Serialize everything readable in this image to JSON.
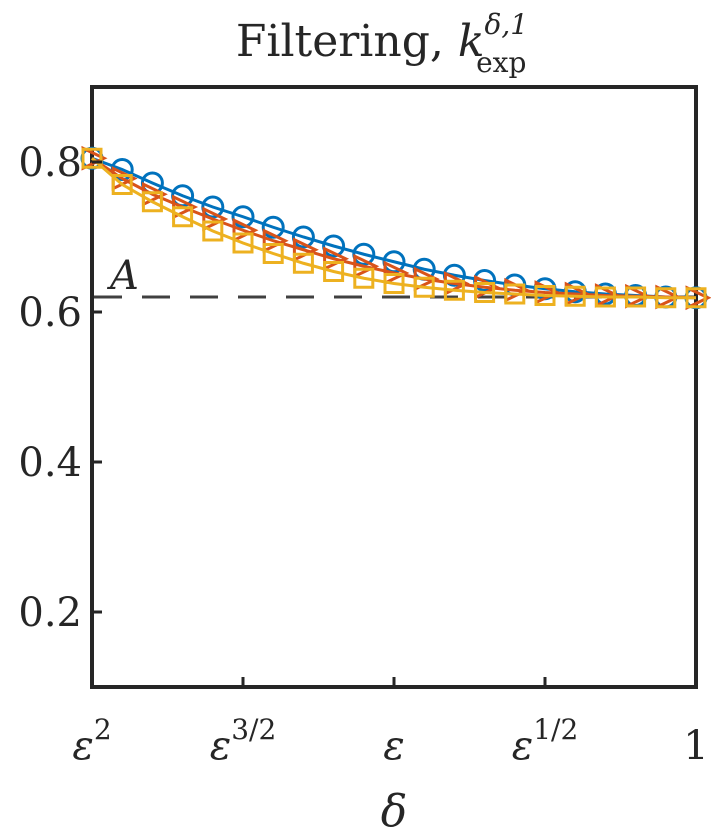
{
  "chart_data": {
    "type": "line",
    "title": "Filtering, k_exp^{δ,1}",
    "title_main": "Filtering, ",
    "title_symbol": "k",
    "title_sup": "δ,1",
    "title_sub": "exp",
    "xlabel": "δ",
    "ylabel": "",
    "x_scale": "log",
    "x_ticks": [
      {
        "value": 0,
        "base": "ε",
        "exp": "2"
      },
      {
        "value": 0.5,
        "base": "ε",
        "exp": "3/2"
      },
      {
        "value": 1,
        "base": "ε",
        "exp": ""
      },
      {
        "value": 1.5,
        "base": "ε",
        "exp": "1/2"
      },
      {
        "value": 2,
        "base": "1",
        "exp": ""
      }
    ],
    "xlim": [
      0,
      2
    ],
    "ylim": [
      0.1,
      0.9
    ],
    "y_ticks": [
      0.2,
      0.4,
      0.6,
      0.8
    ],
    "y_tick_labels": [
      "0.2",
      "0.4",
      "0.6",
      "0.8"
    ],
    "grid": false,
    "reference_line": {
      "y": 0.62,
      "label": "A",
      "style": "dashed",
      "color": "#404040"
    },
    "x": [
      0,
      0.1,
      0.2,
      0.3,
      0.4,
      0.5,
      0.6,
      0.7,
      0.8,
      0.9,
      1.0,
      1.1,
      1.2,
      1.3,
      1.4,
      1.5,
      1.6,
      1.7,
      1.8,
      1.9,
      2.0
    ],
    "series": [
      {
        "marker": "circle",
        "color": "#0072BD",
        "values": [
          0.805,
          0.79,
          0.772,
          0.755,
          0.74,
          0.727,
          0.713,
          0.7,
          0.688,
          0.677,
          0.667,
          0.657,
          0.649,
          0.642,
          0.636,
          0.631,
          0.627,
          0.624,
          0.622,
          0.62,
          0.619
        ]
      },
      {
        "marker": "triangle-right",
        "color": "#D95319",
        "values": [
          0.805,
          0.778,
          0.757,
          0.74,
          0.724,
          0.709,
          0.695,
          0.683,
          0.671,
          0.661,
          0.652,
          0.644,
          0.638,
          0.633,
          0.629,
          0.626,
          0.624,
          0.622,
          0.621,
          0.62,
          0.619
        ]
      },
      {
        "marker": "square",
        "color": "#EDB120",
        "values": [
          0.805,
          0.77,
          0.747,
          0.727,
          0.708,
          0.692,
          0.678,
          0.665,
          0.654,
          0.645,
          0.638,
          0.633,
          0.629,
          0.626,
          0.624,
          0.622,
          0.621,
          0.62,
          0.62,
          0.619,
          0.619
        ]
      }
    ]
  }
}
